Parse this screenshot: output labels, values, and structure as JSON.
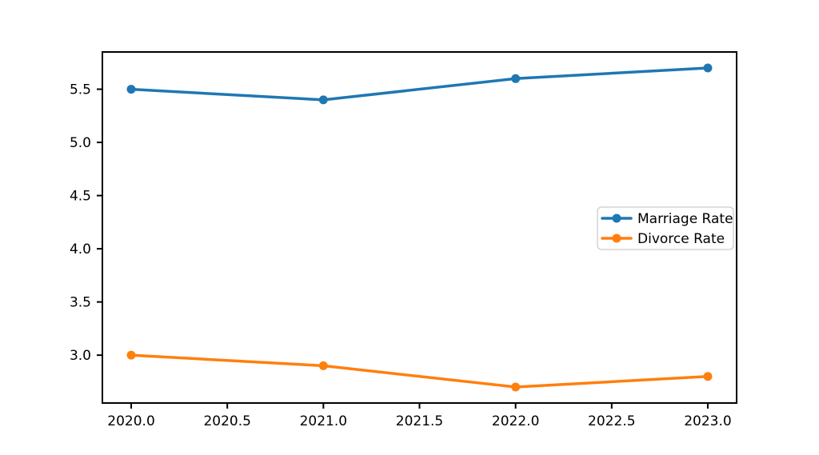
{
  "figure": {
    "background_color": "#ffffff",
    "axis_color": "#000000",
    "tick_label_color": "#000000",
    "legend_border_color": "#cccccc"
  },
  "chart_data": {
    "type": "line",
    "title": "",
    "xlabel": "",
    "ylabel": "",
    "grid": false,
    "x": [
      2020,
      2021,
      2022,
      2023
    ],
    "series": [
      {
        "name": "Marriage Rate",
        "values": [
          5.5,
          5.4,
          5.6,
          5.7
        ],
        "color": "#1f77b4",
        "marker": "circle"
      },
      {
        "name": "Divorce Rate",
        "values": [
          3.0,
          2.9,
          2.7,
          2.8
        ],
        "color": "#ff7f0e",
        "marker": "circle"
      }
    ],
    "xlim": [
      2019.85,
      2023.15
    ],
    "ylim": [
      2.55,
      5.85
    ],
    "x_ticks": [
      2020.0,
      2020.5,
      2021.0,
      2021.5,
      2022.0,
      2022.5,
      2023.0
    ],
    "x_tick_labels": [
      "2020.0",
      "2020.5",
      "2021.0",
      "2021.5",
      "2022.0",
      "2022.5",
      "2023.0"
    ],
    "y_ticks": [
      3.0,
      3.5,
      4.0,
      4.5,
      5.0,
      5.5
    ],
    "y_tick_labels": [
      "3.0",
      "3.5",
      "4.0",
      "4.5",
      "5.0",
      "5.5"
    ],
    "legend": {
      "position": "center-right",
      "entries": [
        "Marriage Rate",
        "Divorce Rate"
      ]
    }
  }
}
